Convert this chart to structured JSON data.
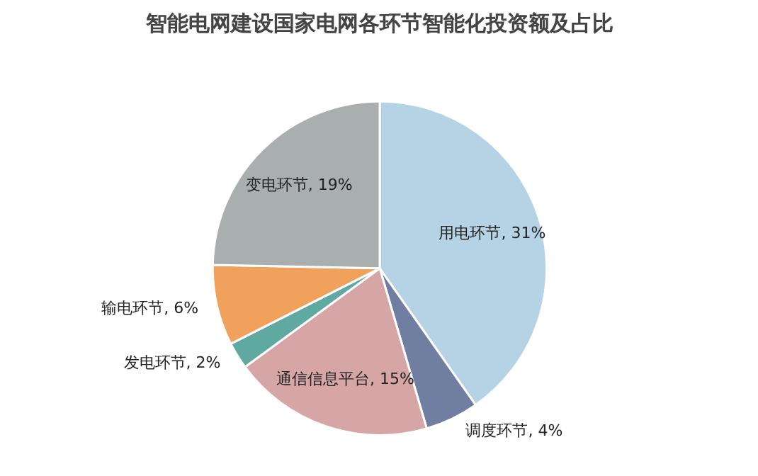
{
  "chart_data": {
    "type": "pie",
    "title": "智能电网建设国家电网各环节智能化投资额及占比",
    "categories": [
      "用电环节",
      "调度环节",
      "通信信息平台",
      "发电环节",
      "输电环节",
      "变电环节"
    ],
    "values": [
      31,
      4,
      15,
      2,
      6,
      19
    ],
    "colors": [
      "#b5d3e5",
      "#6f7ea1",
      "#d5a6a5",
      "#5fa9a1",
      "#f0a15c",
      "#a9aeae"
    ],
    "value_labels": [
      ", 31%",
      ", 4%",
      ", 15%",
      ", 2%",
      ", 6%",
      ", 19%"
    ]
  }
}
